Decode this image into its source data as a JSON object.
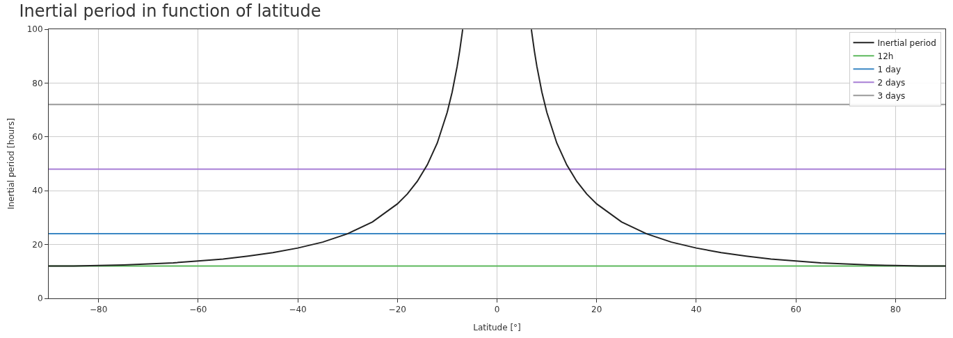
{
  "chart_data": {
    "type": "line",
    "title": "Inertial period in function of latitude",
    "xlabel": "Latitude [°]",
    "ylabel": "Inertial period [hours]",
    "xlim": [
      -90,
      90
    ],
    "ylim": [
      0,
      100
    ],
    "xticks": [
      {
        "value": -80,
        "label": "−80"
      },
      {
        "value": -60,
        "label": "−60"
      },
      {
        "value": -40,
        "label": "−40"
      },
      {
        "value": -20,
        "label": "−20"
      },
      0,
      20,
      40,
      60,
      80
    ],
    "yticks": [
      0,
      20,
      40,
      60,
      80,
      100
    ],
    "grid": true,
    "legend": "top right",
    "marker": "none",
    "line_style": "solid",
    "series": [
      {
        "name": "Inertial period",
        "color": "#222222",
        "x": [
          -90,
          -85,
          -80,
          -75,
          -70,
          -65,
          -60,
          -55,
          -50,
          -45,
          -40,
          -35,
          -30,
          -25,
          -20,
          -18,
          -16,
          -14,
          -12,
          -10,
          -9,
          -8,
          -7.5,
          -7,
          -6.9,
          0,
          6.9,
          7,
          7.5,
          8,
          9,
          10,
          12,
          14,
          16,
          18,
          20,
          25,
          30,
          35,
          40,
          45,
          50,
          55,
          60,
          65,
          70,
          75,
          80,
          85,
          90
        ],
        "values": [
          12,
          12.0,
          12.2,
          12.4,
          12.8,
          13.2,
          13.9,
          14.6,
          15.7,
          17.0,
          18.7,
          20.9,
          24,
          28.4,
          35.1,
          38.8,
          43.5,
          49.6,
          57.7,
          69.1,
          76.7,
          86.2,
          91.9,
          98.5,
          99.9,
          null,
          99.9,
          98.5,
          91.9,
          86.2,
          76.7,
          69.1,
          57.7,
          49.6,
          43.5,
          38.8,
          35.1,
          28.4,
          24,
          20.9,
          18.7,
          17.0,
          15.7,
          14.6,
          13.9,
          13.2,
          12.8,
          12.4,
          12.2,
          12.0,
          12
        ]
      },
      {
        "name": "12h",
        "color": "#5cb85c",
        "x": [
          -90,
          90
        ],
        "values": [
          12,
          12
        ]
      },
      {
        "name": "1 day",
        "color": "#3a87c4",
        "x": [
          -90,
          90
        ],
        "values": [
          24,
          24
        ]
      },
      {
        "name": "2 days",
        "color": "#a87fd6",
        "x": [
          -90,
          90
        ],
        "values": [
          48,
          48
        ]
      },
      {
        "name": "3 days",
        "color": "#999999",
        "x": [
          -90,
          90
        ],
        "values": [
          72,
          72
        ]
      }
    ]
  }
}
